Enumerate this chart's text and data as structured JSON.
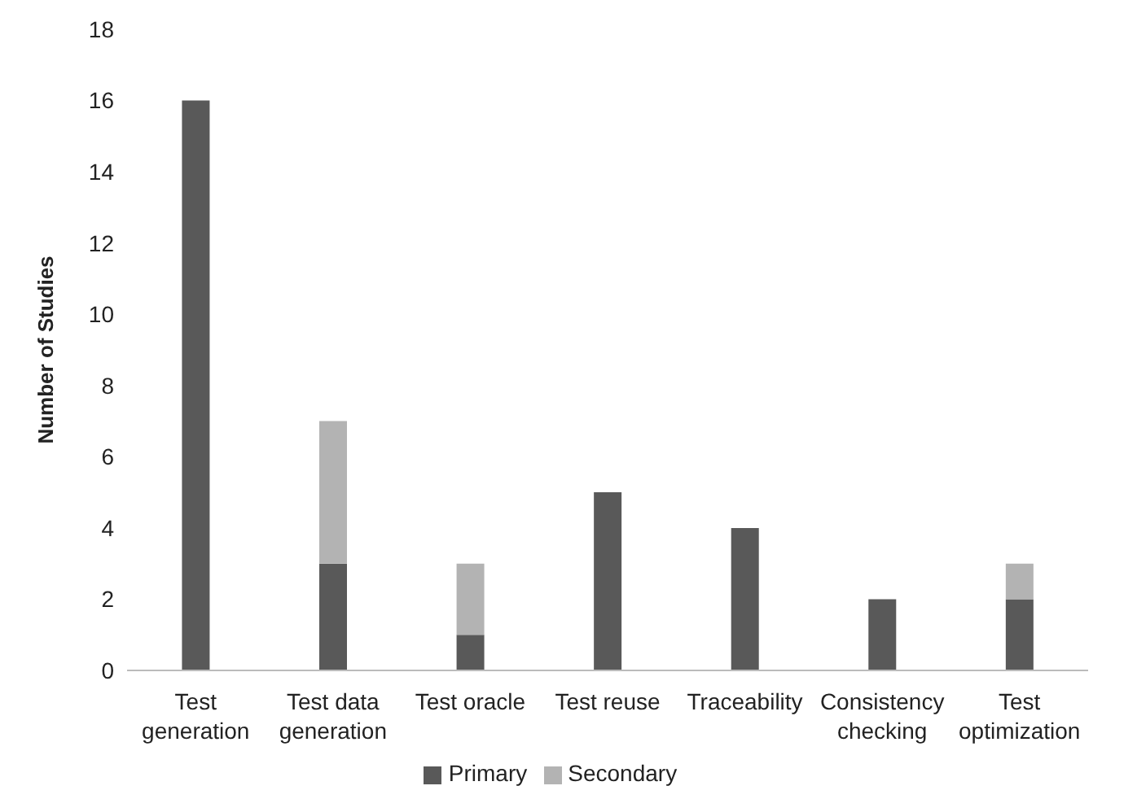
{
  "chart_data": {
    "type": "bar",
    "stacked": true,
    "ylabel": "Number of Studies",
    "categories": [
      "Test generation",
      "Test data generation",
      "Test oracle",
      "Test reuse",
      "Traceability",
      "Consistency checking",
      "Test optimization"
    ],
    "series": [
      {
        "name": "Primary",
        "color": "#595959",
        "values": [
          16,
          3,
          1,
          5,
          4,
          2,
          2
        ]
      },
      {
        "name": "Secondary",
        "color": "#b3b3b3",
        "values": [
          0,
          4,
          2,
          0,
          0,
          0,
          1
        ]
      }
    ],
    "ylim": [
      0,
      18
    ],
    "yticks": [
      0,
      2,
      4,
      6,
      8,
      10,
      12,
      14,
      16,
      18
    ],
    "grid": false,
    "legend": "bottom"
  }
}
